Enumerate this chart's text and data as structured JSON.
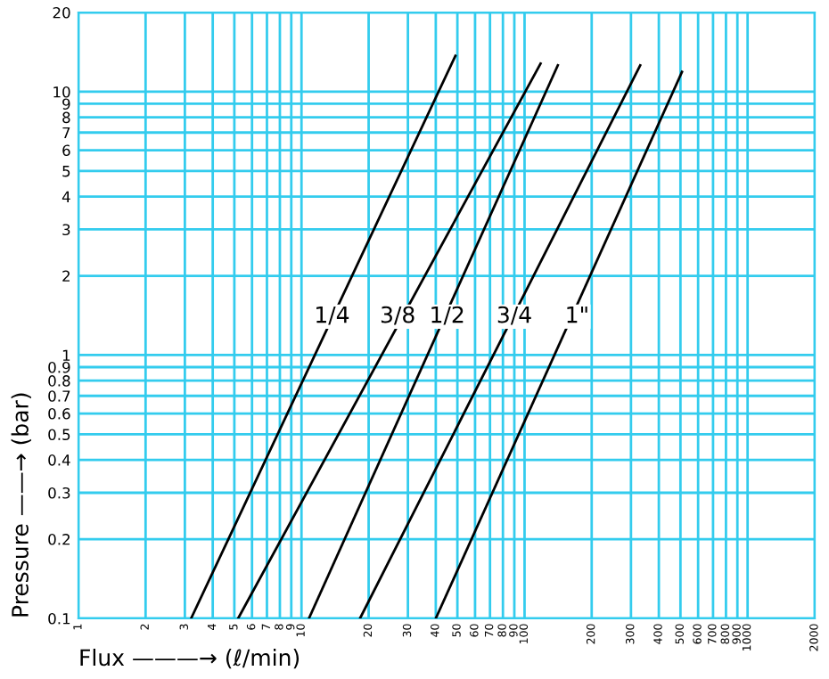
{
  "chart_data": {
    "type": "line",
    "xlabel": "Flux ———→ (ℓ/min)",
    "ylabel": "Pressure ——→ (bar)",
    "log": "xy",
    "grid": true,
    "marker": "none",
    "line_style": "solid",
    "legend": false,
    "xlim": [
      1,
      2000
    ],
    "ylim": [
      0.1,
      20
    ],
    "xticks": [
      1,
      2,
      3,
      4,
      5,
      6,
      7,
      8,
      9,
      10,
      20,
      30,
      40,
      50,
      60,
      70,
      80,
      90,
      100,
      200,
      300,
      400,
      500,
      600,
      700,
      800,
      900,
      1000,
      2000
    ],
    "yticks": [
      0.1,
      0.2,
      0.3,
      0.4,
      0.5,
      0.6,
      0.7,
      0.8,
      0.9,
      1,
      2,
      3,
      4,
      5,
      6,
      7,
      8,
      9,
      10,
      20
    ],
    "series": [
      {
        "color": "#000000",
        "x": [
          3.2,
          4.7,
          49
        ],
        "values": [
          0.1,
          0.2,
          13.7
        ]
      },
      {
        "color": "#000000",
        "x": [
          5.2,
          118
        ],
        "values": [
          0.1,
          12.8
        ]
      },
      {
        "color": "#000000",
        "x": [
          10.8,
          141
        ],
        "values": [
          0.1,
          12.6
        ]
      },
      {
        "color": "#000000",
        "x": [
          18.3,
          330
        ],
        "values": [
          0.1,
          12.6
        ]
      },
      {
        "color": "#000000",
        "x": [
          40,
          508
        ],
        "values": [
          0.1,
          11.9
        ]
      }
    ],
    "annotations": [
      {
        "text": "1/4",
        "x": 13.7,
        "y": 1.4
      },
      {
        "text": "3/8",
        "x": 27,
        "y": 1.4
      },
      {
        "text": "1/2",
        "x": 45,
        "y": 1.4
      },
      {
        "text": "3/4",
        "x": 90,
        "y": 1.4
      },
      {
        "text": "1\"",
        "x": 172,
        "y": 1.4
      }
    ]
  }
}
